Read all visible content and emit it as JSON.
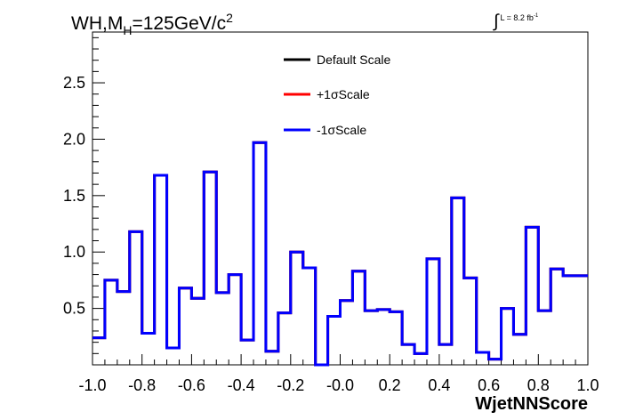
{
  "chart_data": {
    "type": "line",
    "style": "step-histogram",
    "title": {
      "prefix": "WH,M",
      "subscript": "H",
      "main": "=125GeV/c",
      "superscript": "2"
    },
    "luminosity": {
      "symbol": "∫",
      "text": "L = 8.2 fb",
      "superscript": "-1"
    },
    "xlabel": "WjetNNScore",
    "ylabel": "",
    "xlim": [
      -1.0,
      1.0
    ],
    "ylim": [
      0.0,
      2.95
    ],
    "x_ticks": [
      "-1.0",
      "-0.8",
      "-0.6",
      "-0.4",
      "-0.2",
      "-0.0",
      "0.2",
      "0.4",
      "0.6",
      "0.8",
      "1.0"
    ],
    "y_ticks": [
      "0.5",
      "1.0",
      "1.5",
      "2.0",
      "2.5"
    ],
    "bin_edges": [
      -1.0,
      -0.95,
      -0.9,
      -0.85,
      -0.8,
      -0.75,
      -0.7,
      -0.65,
      -0.6,
      -0.55,
      -0.5,
      -0.45,
      -0.4,
      -0.35,
      -0.3,
      -0.25,
      -0.2,
      -0.15,
      -0.1,
      -0.05,
      0.0,
      0.05,
      0.1,
      0.15,
      0.2,
      0.25,
      0.3,
      0.35,
      0.4,
      0.45,
      0.5,
      0.55,
      0.6,
      0.65,
      0.7,
      0.75,
      0.8,
      0.85,
      0.9,
      0.95,
      1.0
    ],
    "legend_position": "top-center",
    "series": [
      {
        "name": "Default Scale",
        "color": "#000000",
        "values": [
          0.24,
          0.75,
          0.65,
          1.18,
          0.28,
          1.68,
          0.15,
          0.68,
          0.59,
          1.71,
          0.64,
          0.8,
          0.22,
          1.97,
          0.12,
          0.46,
          1.0,
          0.86,
          0.0,
          0.43,
          0.57,
          0.83,
          0.48,
          0.49,
          0.47,
          0.18,
          0.1,
          0.94,
          0.18,
          1.48,
          0.77,
          0.11,
          0.05,
          0.5,
          0.27,
          1.22,
          0.48,
          0.85,
          0.79,
          0.79
        ]
      },
      {
        "name": "+1σScale",
        "color": "#ff0000",
        "values": [
          0.24,
          0.75,
          0.65,
          1.18,
          0.28,
          1.68,
          0.15,
          0.68,
          0.59,
          1.71,
          0.64,
          0.8,
          0.22,
          1.97,
          0.12,
          0.46,
          1.0,
          0.86,
          0.0,
          0.43,
          0.57,
          0.83,
          0.48,
          0.49,
          0.47,
          0.18,
          0.1,
          0.94,
          0.18,
          1.48,
          0.77,
          0.11,
          0.05,
          0.5,
          0.27,
          1.22,
          0.48,
          0.85,
          0.79,
          0.79
        ]
      },
      {
        "name": "-1σScale",
        "color": "#0000ff",
        "values": [
          0.24,
          0.75,
          0.65,
          1.18,
          0.28,
          1.68,
          0.15,
          0.68,
          0.59,
          1.71,
          0.64,
          0.8,
          0.22,
          1.97,
          0.12,
          0.46,
          1.0,
          0.86,
          0.0,
          0.43,
          0.57,
          0.83,
          0.48,
          0.49,
          0.47,
          0.18,
          0.1,
          0.94,
          0.18,
          1.48,
          0.77,
          0.11,
          0.05,
          0.5,
          0.27,
          1.22,
          0.48,
          0.85,
          0.79,
          0.79
        ]
      }
    ]
  }
}
